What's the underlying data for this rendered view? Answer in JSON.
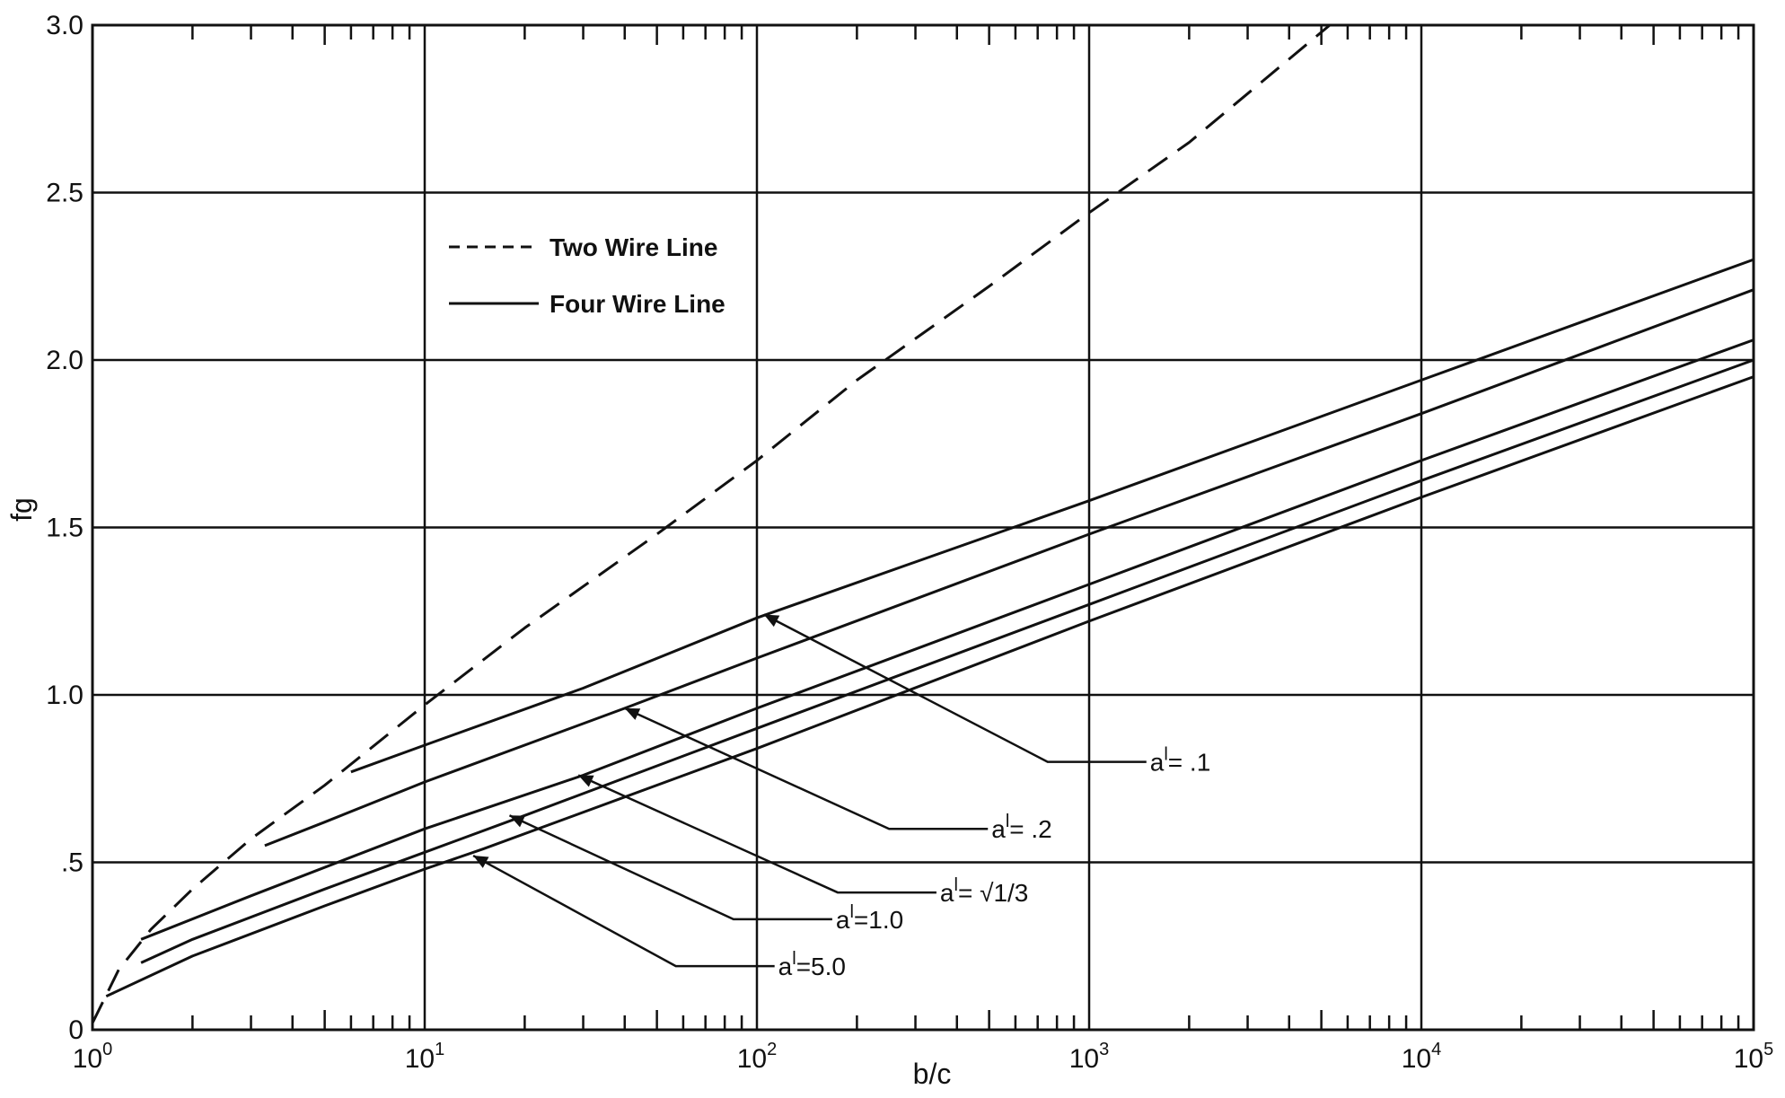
{
  "chart_data": {
    "type": "line",
    "x_scale": "log",
    "xlim": [
      1,
      100000
    ],
    "ylim": [
      0,
      3.0
    ],
    "grid": true,
    "legend_position": "top-left",
    "xlabel": "b/c",
    "ylabel": "fg",
    "x_tick_labels": [
      {
        "base": "10",
        "exp": "0"
      },
      {
        "base": "10",
        "exp": "1"
      },
      {
        "base": "10",
        "exp": "2"
      },
      {
        "base": "10",
        "exp": "3"
      },
      {
        "base": "10",
        "exp": "4"
      },
      {
        "base": "10",
        "exp": "5"
      }
    ],
    "y_tick_labels": [
      "0",
      ".5",
      "1.0",
      "1.5",
      "2.0",
      "2.5",
      "3.0"
    ],
    "legend": [
      {
        "label": "Two Wire Line",
        "style": "dashed"
      },
      {
        "label": "Four Wire Line",
        "style": "solid"
      }
    ],
    "series": [
      {
        "name": "Two Wire Line",
        "style": "dashed",
        "x": [
          1,
          1.2,
          1.5,
          2,
          3,
          5,
          10,
          20,
          50,
          100,
          200,
          500,
          1000,
          2000,
          5300
        ],
        "y": [
          0.02,
          0.18,
          0.3,
          0.42,
          0.57,
          0.73,
          0.97,
          1.2,
          1.48,
          1.7,
          1.94,
          2.22,
          2.44,
          2.65,
          3.0
        ]
      },
      {
        "name": "a' = .1",
        "style": "solid",
        "x": [
          6,
          10,
          30,
          100,
          1000,
          10000,
          100000
        ],
        "y": [
          0.77,
          0.85,
          1.02,
          1.23,
          1.58,
          1.94,
          2.3
        ]
      },
      {
        "name": "a' = .2",
        "style": "solid",
        "x": [
          3.3,
          5,
          10,
          40,
          100,
          1000,
          10000,
          100000
        ],
        "y": [
          0.55,
          0.62,
          0.74,
          0.96,
          1.11,
          1.48,
          1.84,
          2.21
        ]
      },
      {
        "name": "a' = √1/3",
        "style": "solid",
        "x": [
          1.4,
          3,
          10,
          30,
          100,
          1000,
          10000,
          100000
        ],
        "y": [
          0.27,
          0.4,
          0.6,
          0.76,
          0.96,
          1.33,
          1.7,
          2.06
        ]
      },
      {
        "name": "a' = 1.0",
        "style": "solid",
        "x": [
          1.4,
          2,
          5,
          10,
          20,
          100,
          1000,
          10000,
          100000
        ],
        "y": [
          0.2,
          0.27,
          0.42,
          0.53,
          0.64,
          0.9,
          1.27,
          1.64,
          2.0
        ]
      },
      {
        "name": "a' = 5.0",
        "style": "solid",
        "x": [
          1.1,
          2,
          5,
          10,
          15,
          100,
          1000,
          10000,
          100000
        ],
        "y": [
          0.1,
          0.22,
          0.37,
          0.48,
          0.54,
          0.84,
          1.22,
          1.59,
          1.95
        ]
      }
    ],
    "annotations": [
      {
        "main": "a",
        "sup": "l",
        "rest": "= .1",
        "target_x": 105,
        "target_y": 1.24,
        "elbow_x": 750,
        "elbow_y": 0.8
      },
      {
        "main": "a",
        "sup": "l",
        "rest": "= .2",
        "target_x": 40,
        "target_y": 0.96,
        "elbow_x": 250,
        "elbow_y": 0.6
      },
      {
        "main": "a",
        "sup": "l",
        "rest": "= √1/3",
        "target_x": 29,
        "target_y": 0.76,
        "elbow_x": 175,
        "elbow_y": 0.41
      },
      {
        "main": "a",
        "sup": "l",
        "rest": "=1.0",
        "target_x": 18,
        "target_y": 0.64,
        "elbow_x": 85,
        "elbow_y": 0.33
      },
      {
        "main": "a",
        "sup": "l",
        "rest": "=5.0",
        "target_x": 14,
        "target_y": 0.52,
        "elbow_x": 57,
        "elbow_y": 0.19
      }
    ],
    "colors": {
      "line": "#111111",
      "background": "#ffffff"
    }
  }
}
